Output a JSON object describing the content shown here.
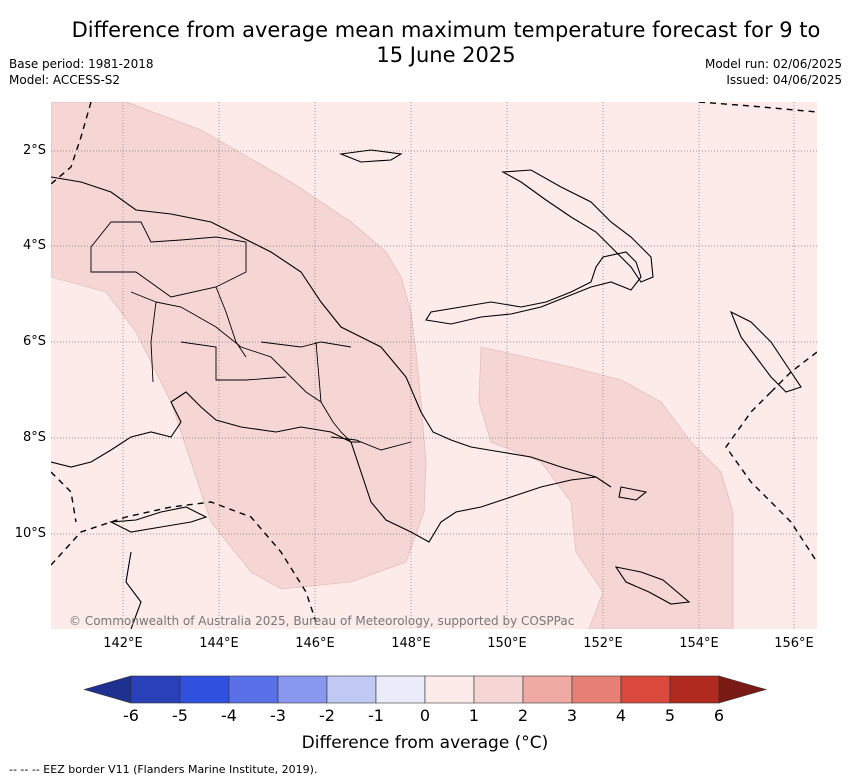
{
  "title": "Difference from average mean maximum temperature forecast for 9 to 15 June 2025",
  "meta": {
    "base_period": "Base period: 1981-2018",
    "model": "Model: ACCESS-S2",
    "model_run": "Model run: 02/06/2025",
    "issued": "Issued: 04/06/2025"
  },
  "map": {
    "copyright": "© Commonwealth of Australia 2025, Bureau of Meteorology, supported by COSPPac",
    "x_ticks": [
      "142°E",
      "144°E",
      "146°E",
      "148°E",
      "150°E",
      "152°E",
      "154°E",
      "156°E"
    ],
    "y_ticks": [
      "2°S",
      "4°S",
      "6°S",
      "8°S",
      "10°S"
    ],
    "fill_colors": {
      "class_0_1": "#fcebe8",
      "class_1_2": "#f6d6d4"
    }
  },
  "colorbar": {
    "ticks": [
      "-6",
      "-5",
      "-4",
      "-3",
      "-2",
      "-1",
      "0",
      "1",
      "2",
      "3",
      "4",
      "5",
      "6"
    ],
    "colors": [
      "#1e3090",
      "#2a40b8",
      "#3050e0",
      "#5a70e8",
      "#8898ee",
      "#c0c8f4",
      "#eaedf9",
      "#fcebe8",
      "#f6d6d4",
      "#f0aaa4",
      "#e67f74",
      "#da4a3c",
      "#b02a20",
      "#7a1a14"
    ],
    "label": "Difference from average (°C)"
  },
  "footnote": "--  --  -- EEZ border V11 (Flanders Marine Institute, 2019)."
}
